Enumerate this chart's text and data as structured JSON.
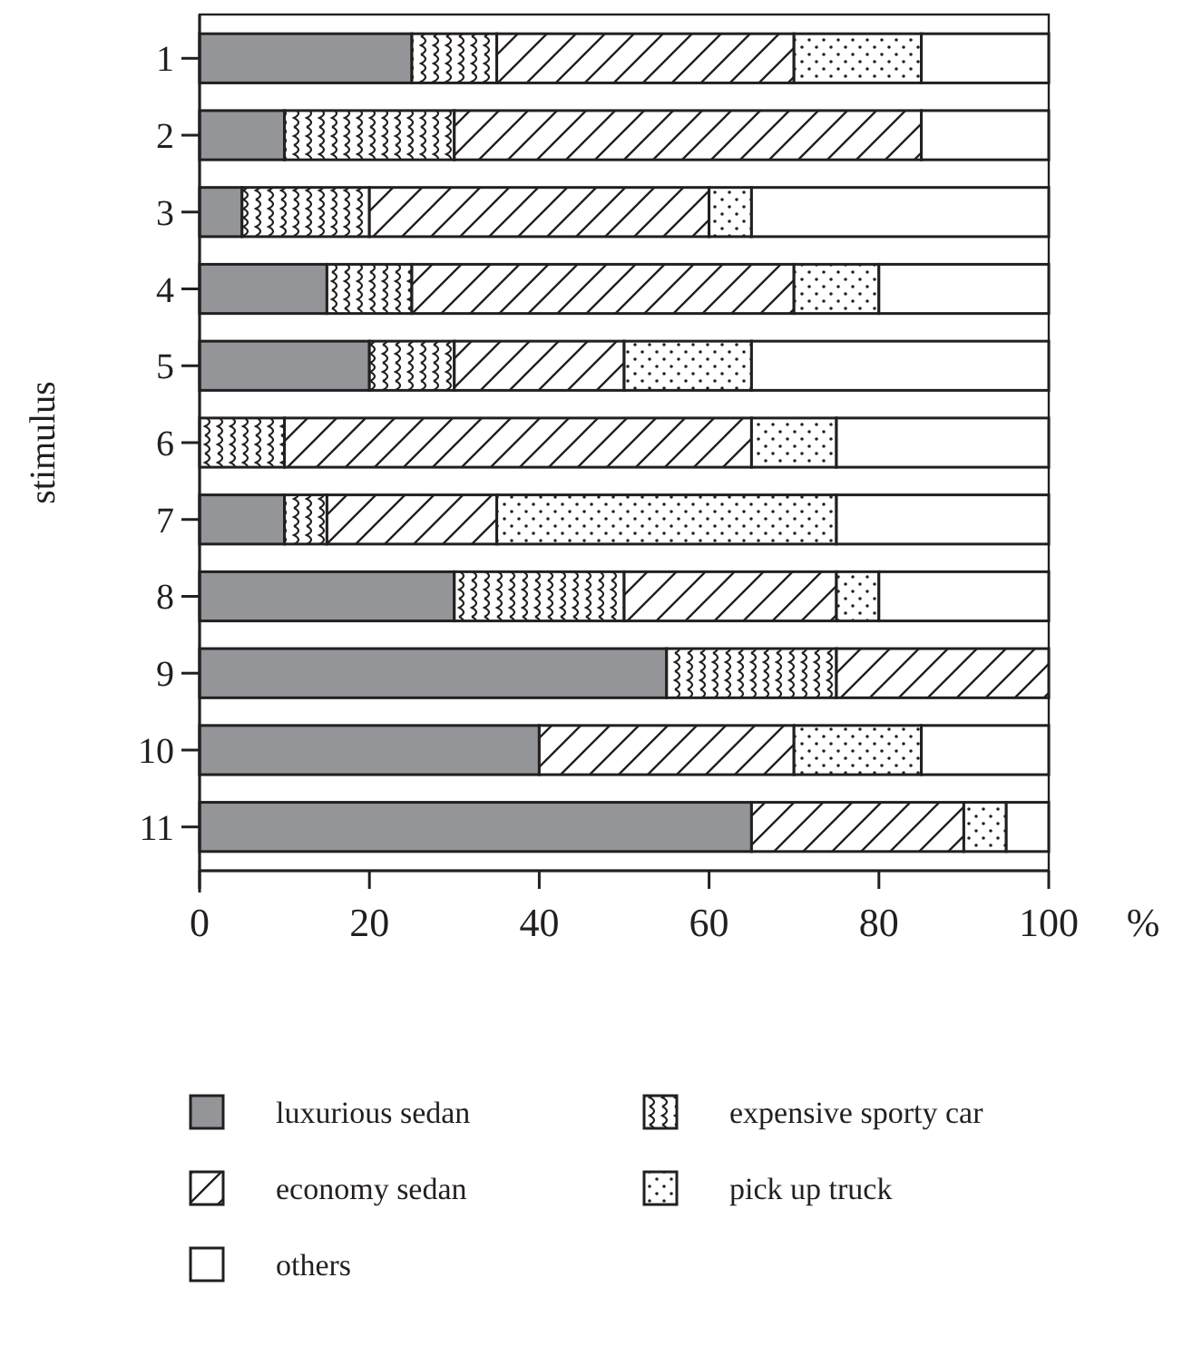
{
  "chart_data": {
    "type": "bar",
    "orientation": "horizontal",
    "stacked": true,
    "xlabel": "%",
    "ylabel": "stimulus",
    "categories": [
      "1",
      "2",
      "3",
      "4",
      "5",
      "6",
      "7",
      "8",
      "9",
      "10",
      "11"
    ],
    "series": [
      {
        "name": "luxurious sedan",
        "color": "#939598",
        "values": [
          25,
          10,
          5,
          15,
          20,
          0,
          10,
          30,
          55,
          40,
          65
        ]
      },
      {
        "name": "expensive sporty car",
        "color": "#231f20",
        "values": [
          10,
          20,
          15,
          10,
          10,
          10,
          5,
          20,
          20,
          0,
          0
        ]
      },
      {
        "name": "economy sedan",
        "color": "#231f20",
        "values": [
          35,
          55,
          40,
          45,
          20,
          55,
          20,
          25,
          25,
          30,
          25
        ]
      },
      {
        "name": "pick up truck",
        "color": "#231f20",
        "values": [
          15,
          0,
          5,
          10,
          15,
          10,
          40,
          5,
          0,
          15,
          5
        ]
      },
      {
        "name": "others",
        "color": "#ffffff",
        "values": [
          15,
          15,
          35,
          20,
          35,
          25,
          25,
          20,
          0,
          15,
          5
        ]
      }
    ],
    "xlim": [
      0,
      100
    ],
    "xticks": [
      0,
      20,
      40,
      60,
      80,
      100
    ],
    "grid": false,
    "legend": "bottom"
  }
}
